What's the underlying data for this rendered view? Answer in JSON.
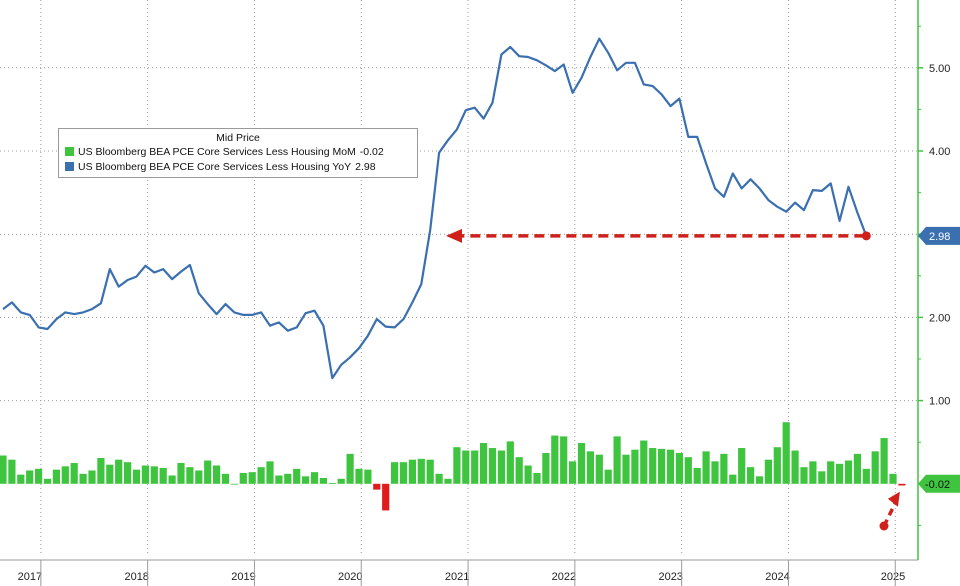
{
  "chart_data": {
    "type": "line",
    "title": "",
    "legend_title": "Mid Price",
    "legend_placement": "top-left",
    "grid": true,
    "x_range": [
      "2016-06",
      "2025-03"
    ],
    "y_range": [
      -0.9,
      5.9
    ],
    "y_ticks": [
      "5.00",
      "4.00",
      "3.00",
      "2.00",
      "1.00"
    ],
    "x_labels": [
      {
        "year": "2017",
        "label": "2017"
      },
      {
        "year": "2018",
        "label": "2018"
      },
      {
        "year": "2019",
        "label": "2019"
      },
      {
        "year": "2020",
        "label": "2020"
      },
      {
        "year": "2021",
        "label": "2021"
      },
      {
        "year": "2022",
        "label": "2022"
      },
      {
        "year": "2023",
        "label": "2023"
      },
      {
        "year": "2024",
        "label": "2024"
      },
      {
        "year": "2025",
        "label": "2025"
      }
    ],
    "series": [
      {
        "name": "US Bloomberg BEA PCE Core Services Less Housing MoM",
        "display_value": "-0.02",
        "type": "bar",
        "color": "#3fc43f",
        "negative_color": "#e01b1b",
        "axis_label": "-0.02",
        "values": [
          0.34,
          0.29,
          0.11,
          0.16,
          0.18,
          0.06,
          0.17,
          0.21,
          0.25,
          0.12,
          0.16,
          0.31,
          0.23,
          0.29,
          0.26,
          0.17,
          0.22,
          0.21,
          0.19,
          0.1,
          0.25,
          0.2,
          0.16,
          0.28,
          0.22,
          0.12,
          0.0,
          0.13,
          0.14,
          0.2,
          0.27,
          0.1,
          0.12,
          0.18,
          0.09,
          0.14,
          0.07,
          0.01,
          0.06,
          0.36,
          0.18,
          0.17,
          -0.07,
          -0.32,
          0.26,
          0.26,
          0.29,
          0.3,
          0.29,
          0.12,
          0.06,
          0.44,
          0.4,
          0.4,
          0.49,
          0.43,
          0.4,
          0.51,
          0.32,
          0.22,
          0.13,
          0.37,
          0.58,
          0.57,
          0.27,
          0.49,
          0.39,
          0.35,
          0.17,
          0.57,
          0.35,
          0.41,
          0.52,
          0.43,
          0.42,
          0.41,
          0.37,
          0.32,
          0.19,
          0.39,
          0.27,
          0.36,
          0.11,
          0.43,
          0.2,
          0.09,
          0.29,
          0.44,
          0.74,
          0.4,
          0.2,
          0.27,
          0.15,
          0.27,
          0.24,
          0.28,
          0.36,
          0.18,
          0.39,
          0.55,
          0.12,
          -0.02
        ]
      },
      {
        "name": "US Bloomberg BEA PCE Core Services Less Housing YoY",
        "display_value": "2.98",
        "type": "line",
        "color": "#3a6fb0",
        "axis_label": "2.98",
        "values": [
          2.1,
          2.18,
          2.06,
          2.03,
          1.88,
          1.86,
          1.98,
          2.06,
          2.04,
          2.06,
          2.1,
          2.17,
          2.58,
          2.37,
          2.45,
          2.49,
          2.62,
          2.54,
          2.58,
          2.46,
          2.55,
          2.63,
          2.29,
          2.16,
          2.04,
          2.16,
          2.06,
          2.03,
          2.03,
          2.06,
          1.9,
          1.94,
          1.84,
          1.88,
          2.05,
          2.08,
          1.9,
          1.27,
          1.43,
          1.52,
          1.63,
          1.78,
          1.98,
          1.89,
          1.88,
          1.98,
          2.18,
          2.4,
          3.05,
          3.98,
          4.13,
          4.26,
          4.49,
          4.52,
          4.39,
          4.58,
          5.16,
          5.25,
          5.14,
          5.13,
          5.09,
          5.03,
          4.96,
          5.04,
          4.7,
          4.88,
          5.13,
          5.35,
          5.18,
          4.97,
          5.06,
          5.06,
          4.8,
          4.78,
          4.68,
          4.54,
          4.63,
          4.17,
          4.17,
          3.85,
          3.55,
          3.45,
          3.73,
          3.55,
          3.66,
          3.55,
          3.41,
          3.33,
          3.27,
          3.38,
          3.29,
          3.53,
          3.52,
          3.61,
          3.16,
          3.57,
          3.26,
          2.98
        ]
      }
    ],
    "annotations": [
      {
        "type": "dashed-arrow",
        "color": "#d0201c",
        "points_to": "YoY 2.98 level in early 2021"
      },
      {
        "type": "dashed-arrow",
        "color": "#d0201c",
        "points_to": "latest MoM -0.02 bar"
      }
    ]
  }
}
